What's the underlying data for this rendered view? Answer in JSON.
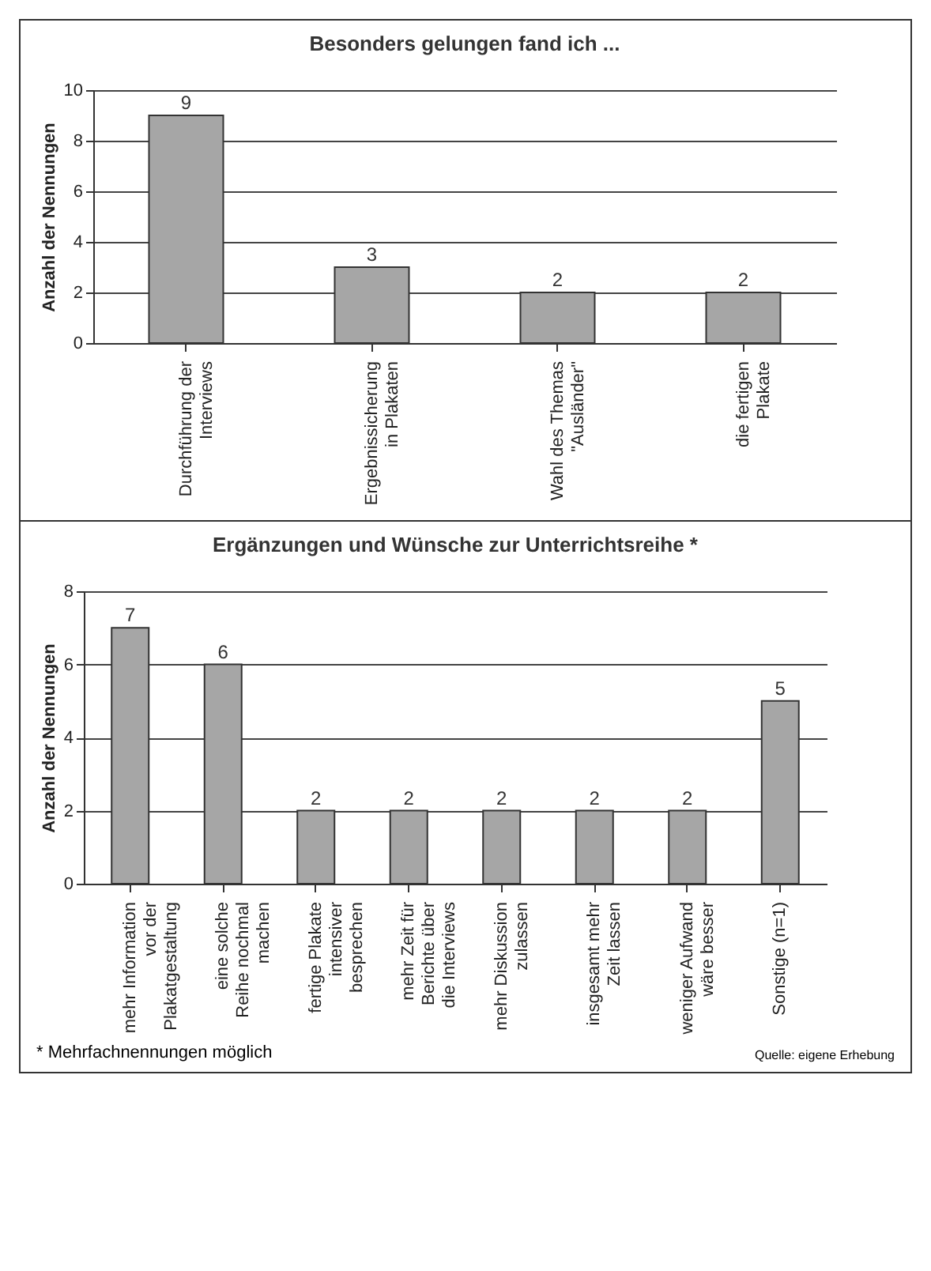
{
  "chart_data": [
    {
      "type": "bar",
      "title": "Besonders gelungen fand ich ...",
      "ylabel": "Anzahl der Nennungen",
      "categories": [
        "Durchführung der Interviews",
        "Ergebnissicherung in Plakaten",
        "Wahl des Themas \"Ausländer\"",
        "die fertigen Plakate"
      ],
      "values": [
        9,
        3,
        2,
        2
      ],
      "color": "#a6a6a6",
      "ylim": [
        0,
        10
      ],
      "yticks": [
        0,
        2,
        4,
        6,
        8,
        10
      ],
      "grid": "y",
      "data_labels": true
    },
    {
      "type": "bar",
      "title": "Ergänzungen und Wünsche zur Unterrichtsreihe *",
      "ylabel": "Anzahl der Nennungen",
      "categories": [
        "mehr Information vor der Plakatgestaltung",
        "eine solche Reihe nochmal machen",
        "fertige Plakate intensiver besprechen",
        "mehr Zeit für Berichte über die Interviews",
        "mehr Diskussion zulassen",
        "insgesamt mehr Zeit lassen",
        "weniger Aufwand wäre besser",
        "Sonstige (n=1)"
      ],
      "values": [
        7,
        6,
        2,
        2,
        2,
        2,
        2,
        5
      ],
      "color": "#a6a6a6",
      "ylim": [
        0,
        8
      ],
      "yticks": [
        0,
        2,
        4,
        6,
        8
      ],
      "grid": "y",
      "data_labels": true,
      "annotations": [
        "* Mehrfachnennungen möglich",
        "Quelle: eigene Erhebung"
      ]
    }
  ]
}
